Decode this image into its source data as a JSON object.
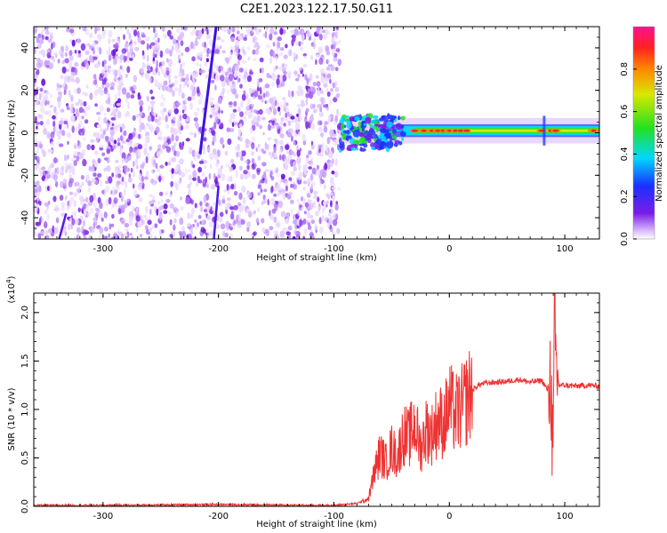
{
  "title": "C2E1.2023.122.17.50.G11",
  "chart_data": [
    {
      "type": "heatmap",
      "xlabel": "Height of straight line (km)",
      "ylabel": "Frequency (Hz)",
      "xlim": [
        -360,
        130
      ],
      "ylim": [
        -50,
        50
      ],
      "x_ticks": [
        -300,
        -200,
        -100,
        0,
        100
      ],
      "y_ticks": [
        -40,
        -20,
        0,
        20,
        40
      ],
      "noise_region_x": [
        -360,
        -95
      ],
      "signal_band": {
        "x_start": -95,
        "x_end": 130,
        "center_freq": 1,
        "half_width": 4
      },
      "colorbar": {
        "label": "Normalized spectral amplitude",
        "range": [
          0.0,
          1.0
        ],
        "ticks": [
          "0.0",
          "0.2",
          "0.4",
          "0.6",
          "0.8"
        ],
        "tick_values": [
          0.0,
          0.2,
          0.4,
          0.6,
          0.8
        ],
        "colormap": "rainbow (white - purple - blue - cyan - green - yellow - orange - red - magenta)"
      },
      "colors": {
        "noise": "#7a1ee6",
        "band": "#33e033",
        "core": "#ff2222"
      }
    },
    {
      "type": "line",
      "xlabel": "Height of straight line (km)",
      "ylabel": "SNR (10 * v/v)",
      "y_scale_label_base": "(x10",
      "y_scale_label_exp": "4",
      "y_scale_label_close": ")",
      "xlim": [
        -360,
        130
      ],
      "ylim": [
        0,
        2.2
      ],
      "x_ticks": [
        -300,
        -200,
        -100,
        0,
        100
      ],
      "y_tick_labels": [
        "0.0",
        "0.5",
        "1.0",
        "1.5",
        "2.0"
      ],
      "y_tick_values": [
        0.0,
        0.5,
        1.0,
        1.5,
        2.0
      ],
      "color": "#ee3333",
      "series": [
        {
          "x": [
            -360,
            -300,
            -200,
            -120,
            -100,
            -80,
            -70,
            -65,
            -60,
            -55,
            -50,
            -45,
            -40,
            -35,
            -30,
            -25,
            -20,
            -15,
            -10,
            -5,
            0,
            5,
            10,
            15,
            20,
            25,
            30,
            40,
            50,
            60,
            70,
            80,
            85,
            88,
            90,
            91,
            92,
            95,
            100,
            110,
            120,
            130
          ],
          "y": [
            0.01,
            0.01,
            0.02,
            0.01,
            0.01,
            0.03,
            0.08,
            0.35,
            0.55,
            0.45,
            0.6,
            0.5,
            0.75,
            0.7,
            0.85,
            0.6,
            0.8,
            0.75,
            0.9,
            0.85,
            1.05,
            0.95,
            1.0,
            1.1,
            1.2,
            1.25,
            1.27,
            1.28,
            1.29,
            1.31,
            1.28,
            1.3,
            1.2,
            1.35,
            0.3,
            2.1,
            1.5,
            1.25,
            1.25,
            1.24,
            1.25,
            1.24
          ]
        }
      ]
    }
  ]
}
